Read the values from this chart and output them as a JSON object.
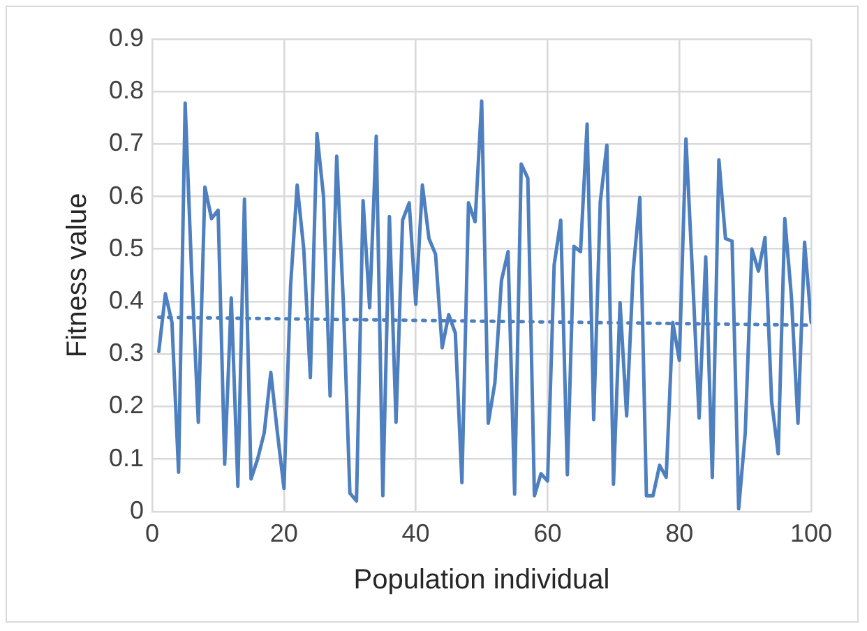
{
  "chart_data": {
    "type": "line",
    "xlabel": "Population individual",
    "ylabel": "Fitness value",
    "xlim": [
      0,
      100
    ],
    "xticks": [
      0,
      20,
      40,
      60,
      80,
      100
    ],
    "ylim": [
      0,
      0.9
    ],
    "yticks": [
      0,
      0.1,
      0.2,
      0.3,
      0.4,
      0.5,
      0.6,
      0.7,
      0.8,
      0.9
    ],
    "grid": true,
    "marker": "none",
    "series": [
      {
        "color": "#4e7fbf",
        "line_style": "solid",
        "x": [
          1,
          2,
          3,
          4,
          5,
          6,
          7,
          8,
          9,
          10,
          11,
          12,
          13,
          14,
          15,
          16,
          17,
          18,
          19,
          20,
          21,
          22,
          23,
          24,
          25,
          26,
          27,
          28,
          29,
          30,
          31,
          32,
          33,
          34,
          35,
          36,
          37,
          38,
          39,
          40,
          41,
          42,
          43,
          44,
          45,
          46,
          47,
          48,
          49,
          50,
          51,
          52,
          53,
          54,
          55,
          56,
          57,
          58,
          59,
          60,
          61,
          62,
          63,
          64,
          65,
          66,
          67,
          68,
          69,
          70,
          71,
          72,
          73,
          74,
          75,
          76,
          77,
          78,
          79,
          80,
          81,
          82,
          83,
          84,
          85,
          86,
          87,
          88,
          89,
          90,
          91,
          92,
          93,
          94,
          95,
          96,
          97,
          98,
          99,
          100
        ],
        "values": [
          0.305,
          0.415,
          0.36,
          0.075,
          0.778,
          0.45,
          0.17,
          0.618,
          0.558,
          0.574,
          0.09,
          0.407,
          0.048,
          0.595,
          0.062,
          0.1,
          0.15,
          0.265,
          0.15,
          0.044,
          0.43,
          0.622,
          0.5,
          0.255,
          0.72,
          0.6,
          0.22,
          0.677,
          0.4,
          0.035,
          0.02,
          0.592,
          0.388,
          0.715,
          0.03,
          0.562,
          0.17,
          0.555,
          0.588,
          0.395,
          0.622,
          0.52,
          0.49,
          0.312,
          0.375,
          0.34,
          0.055,
          0.588,
          0.552,
          0.782,
          0.168,
          0.245,
          0.44,
          0.495,
          0.033,
          0.662,
          0.635,
          0.03,
          0.072,
          0.058,
          0.47,
          0.555,
          0.07,
          0.505,
          0.495,
          0.738,
          0.175,
          0.59,
          0.698,
          0.052,
          0.398,
          0.182,
          0.46,
          0.598,
          0.03,
          0.03,
          0.088,
          0.065,
          0.36,
          0.288,
          0.71,
          0.45,
          0.178,
          0.485,
          0.065,
          0.67,
          0.52,
          0.515,
          0.005,
          0.15,
          0.5,
          0.458,
          0.522,
          0.21,
          0.11,
          0.558,
          0.41,
          0.168,
          0.513,
          0.36
        ]
      },
      {
        "color": "#4e7fbf",
        "line_style": "dotted",
        "x": [
          1,
          100
        ],
        "values": [
          0.37,
          0.355
        ]
      }
    ]
  }
}
